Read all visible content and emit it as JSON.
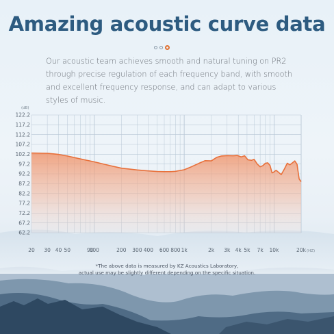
{
  "title": "Amazing acoustic curve data",
  "description": "Our acoustic team achieves smooth and natural tuning on PR2 through precise regulation of each frequency band, with smooth and excellent frequency response, and can adapt to various styles of music.",
  "carousel": {
    "count": 3,
    "active_index": 2
  },
  "footnote_line1": "*The above data is measured by KZ Acoustics Laboratory,",
  "footnote_line2": "actual use may be slightly different depending on the specific situation.",
  "colors": {
    "accent": "#e8703a",
    "title": "#2d5b80",
    "grid": "#b9c8d6"
  },
  "chart_data": {
    "type": "area",
    "ylabel": "(dB)",
    "xlabel": "(HZ)",
    "x_scale": "log",
    "xlim": [
      20,
      20000
    ],
    "ylim": [
      62.2,
      122.2
    ],
    "y_ticks": [
      "122.2",
      "117.2",
      "112.2",
      "107.2",
      "102.2",
      "97.2",
      "92.2",
      "87.2",
      "82.2",
      "77.2",
      "72.2",
      "67.2",
      "62.2"
    ],
    "x_ticks": [
      {
        "v": 20,
        "label": "20"
      },
      {
        "v": 30,
        "label": "30"
      },
      {
        "v": 40,
        "label": "40"
      },
      {
        "v": 50,
        "label": "50"
      },
      {
        "v": 90,
        "label": "90"
      },
      {
        "v": 100,
        "label": "100"
      },
      {
        "v": 200,
        "label": "200"
      },
      {
        "v": 300,
        "label": "300"
      },
      {
        "v": 400,
        "label": "400"
      },
      {
        "v": 600,
        "label": "600"
      },
      {
        "v": 800,
        "label": "800"
      },
      {
        "v": 1000,
        "label": "1k"
      },
      {
        "v": 2000,
        "label": "2k"
      },
      {
        "v": 3000,
        "label": "3k"
      },
      {
        "v": 4000,
        "label": "4k"
      },
      {
        "v": 5000,
        "label": "5k"
      },
      {
        "v": 7000,
        "label": "7k"
      },
      {
        "v": 10000,
        "label": "10k"
      },
      {
        "v": 20000,
        "label": "20k"
      }
    ],
    "grid": true,
    "series": [
      {
        "x": [
          20,
          30,
          40,
          50,
          70,
          100,
          150,
          200,
          300,
          400,
          500,
          600,
          700,
          800,
          1000,
          1200,
          1500,
          1700,
          2000,
          2300,
          2600,
          3000,
          3500,
          3900,
          4300,
          4700,
          5100,
          5600,
          6000,
          6500,
          7000,
          7500,
          8000,
          8500,
          9000,
          9500,
          10000,
          10500,
          11000,
          12000,
          13000,
          14000,
          15000,
          16000,
          17000,
          18000,
          19000,
          20000
        ],
        "y": [
          102.8,
          102.7,
          102.1,
          101.3,
          99.8,
          98.3,
          96.4,
          95.1,
          94.2,
          93.7,
          93.4,
          93.3,
          93.3,
          93.5,
          94.3,
          95.8,
          97.8,
          98.9,
          98.8,
          100.6,
          101.3,
          101.5,
          101.4,
          101.6,
          100.8,
          101.4,
          99.4,
          99.1,
          99.6,
          97.2,
          95.8,
          96.4,
          97.6,
          97.8,
          96.5,
          92.7,
          93.2,
          94.0,
          93.3,
          91.8,
          94.6,
          97.6,
          96.8,
          97.8,
          98.8,
          97.1,
          89.6,
          88.2
        ]
      }
    ]
  }
}
